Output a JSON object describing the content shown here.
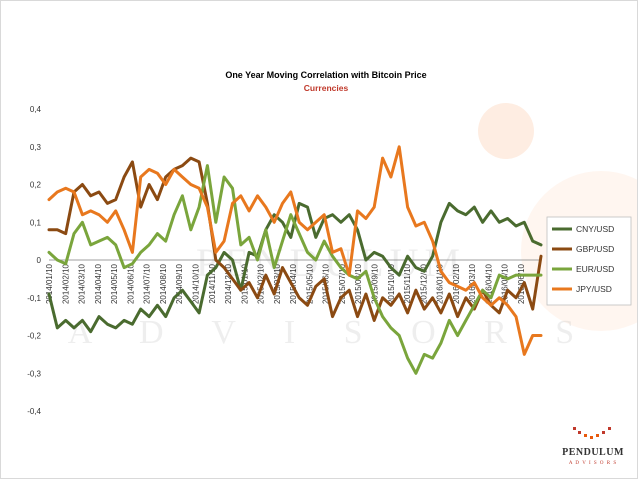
{
  "brand": {
    "name": "PENDULUM",
    "sub": "A D V I S O R S",
    "watermark_top": "PENDULUM",
    "watermark_bottom": "A D V I S O R S",
    "accent": "#e8590c"
  },
  "chart_data": {
    "type": "line",
    "title": "One Year Moving Correlation with Bitcoin Price",
    "subtitle": "Currencies",
    "ylim": [
      -0.4,
      0.4
    ],
    "yticks": [
      "0,4",
      "0,3",
      "0,2",
      "0,1",
      "0",
      "-0,1",
      "-0,2",
      "-0,3",
      "-0,4"
    ],
    "ytick_values": [
      0.4,
      0.3,
      0.2,
      0.1,
      0,
      -0.1,
      -0.2,
      -0.3,
      -0.4
    ],
    "xticks": [
      "2014/01/10",
      "2014/02/10",
      "2014/03/10",
      "2014/04/10",
      "2014/05/10",
      "2014/06/10",
      "2014/07/10",
      "2014/08/10",
      "2014/09/10",
      "2014/10/10",
      "2014/11/10",
      "2014/12/10",
      "2015/01/10",
      "2015/02/10",
      "2015/03/10",
      "2015/04/10",
      "2015/05/10",
      "2015/06/10",
      "2015/07/10",
      "2015/08/10",
      "2015/09/10",
      "2015/10/10",
      "2015/11/10",
      "2015/12/10",
      "2016/01/10",
      "2016/02/10",
      "2016/03/10",
      "2016/04/10",
      "2016/05/10",
      "2016/06/10"
    ],
    "legend_position": "right",
    "grid": false,
    "series": [
      {
        "name": "CNY/USD",
        "color": "#4a6b2f",
        "values": [
          -0.09,
          -0.18,
          -0.16,
          -0.18,
          -0.16,
          -0.19,
          -0.15,
          -0.17,
          -0.18,
          -0.16,
          -0.17,
          -0.13,
          -0.15,
          -0.12,
          -0.15,
          -0.1,
          -0.08,
          -0.11,
          -0.14,
          -0.04,
          -0.02,
          0.02,
          0.0,
          -0.08,
          0.02,
          0.01,
          0.08,
          0.12,
          0.1,
          0.06,
          0.15,
          0.14,
          0.06,
          0.11,
          0.12,
          0.1,
          0.12,
          0.08,
          0.0,
          0.02,
          0.01,
          -0.02,
          -0.04,
          0.01,
          -0.02,
          -0.03,
          0.01,
          0.1,
          0.15,
          0.13,
          0.12,
          0.14,
          0.1,
          0.13,
          0.1,
          0.11,
          0.09,
          0.1,
          0.05,
          0.04
        ]
      },
      {
        "name": "GBP/USD",
        "color": "#8b4a12",
        "values": [
          0.08,
          0.08,
          0.07,
          0.18,
          0.2,
          0.17,
          0.18,
          0.15,
          0.16,
          0.22,
          0.26,
          0.14,
          0.2,
          0.16,
          0.22,
          0.24,
          0.25,
          0.27,
          0.26,
          0.15,
          0.0,
          -0.02,
          -0.05,
          -0.08,
          -0.06,
          -0.1,
          -0.04,
          -0.09,
          -0.02,
          -0.06,
          -0.1,
          -0.12,
          -0.07,
          -0.05,
          -0.15,
          -0.1,
          -0.08,
          -0.15,
          -0.09,
          -0.16,
          -0.1,
          -0.12,
          -0.09,
          -0.14,
          -0.08,
          -0.13,
          -0.1,
          -0.14,
          -0.09,
          -0.15,
          -0.1,
          -0.13,
          -0.08,
          -0.12,
          -0.14,
          -0.08,
          -0.1,
          -0.06,
          -0.13,
          0.01
        ]
      },
      {
        "name": "EUR/USD",
        "color": "#7aa53c",
        "values": [
          0.02,
          0.0,
          -0.01,
          0.07,
          0.1,
          0.04,
          0.05,
          0.06,
          0.04,
          -0.02,
          -0.01,
          0.02,
          0.04,
          0.07,
          0.05,
          0.12,
          0.17,
          0.08,
          0.14,
          0.25,
          0.1,
          0.22,
          0.19,
          0.04,
          0.06,
          0.0,
          0.08,
          -0.02,
          0.05,
          0.12,
          0.07,
          0.02,
          0.0,
          0.05,
          0.01,
          -0.02,
          -0.04,
          -0.05,
          -0.03,
          -0.1,
          -0.15,
          -0.18,
          -0.2,
          -0.26,
          -0.3,
          -0.25,
          -0.26,
          -0.22,
          -0.16,
          -0.2,
          -0.16,
          -0.12,
          -0.08,
          -0.1,
          -0.04,
          -0.05,
          -0.04,
          -0.04,
          -0.04,
          -0.04
        ]
      },
      {
        "name": "JPY/USD",
        "color": "#e8781e",
        "values": [
          0.16,
          0.18,
          0.19,
          0.18,
          0.12,
          0.13,
          0.12,
          0.1,
          0.13,
          0.08,
          0.02,
          0.22,
          0.24,
          0.23,
          0.2,
          0.24,
          0.22,
          0.2,
          0.19,
          0.14,
          0.02,
          0.05,
          0.15,
          0.17,
          0.13,
          0.17,
          0.14,
          0.1,
          0.15,
          0.18,
          0.1,
          0.08,
          0.1,
          0.12,
          0.02,
          0.03,
          -0.04,
          0.13,
          0.11,
          0.14,
          0.27,
          0.22,
          0.3,
          0.14,
          0.09,
          0.1,
          0.05,
          -0.03,
          -0.06,
          -0.07,
          -0.08,
          -0.06,
          -0.1,
          -0.12,
          -0.1,
          -0.12,
          -0.15,
          -0.25,
          -0.2,
          -0.2
        ]
      }
    ]
  }
}
